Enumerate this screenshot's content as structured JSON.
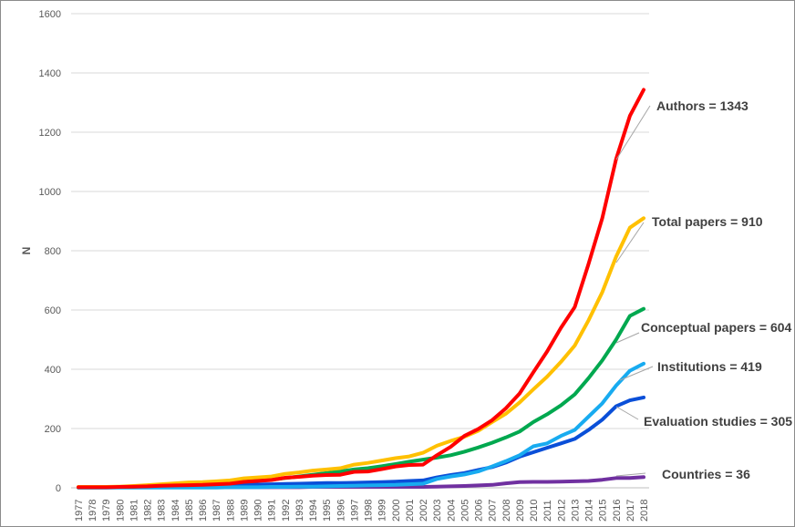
{
  "chart_data": {
    "type": "line",
    "ylabel": "N",
    "xlabel": "",
    "ylim": [
      0,
      1600
    ],
    "yticks": [
      0,
      200,
      400,
      600,
      800,
      1000,
      1200,
      1400,
      1600
    ],
    "grid": true,
    "categories": [
      "1977",
      "1978",
      "1979",
      "1980",
      "1981",
      "1982",
      "1983",
      "1984",
      "1985",
      "1986",
      "1987",
      "1988",
      "1989",
      "1990",
      "1991",
      "1992",
      "1993",
      "1994",
      "1995",
      "1996",
      "1997",
      "1998",
      "1999",
      "2000",
      "2001",
      "2002",
      "2003",
      "2004",
      "2005",
      "2006",
      "2007",
      "2008",
      "2009",
      "2010",
      "2011",
      "2012",
      "2013",
      "2014",
      "2015",
      "2016",
      "2017",
      "2018"
    ],
    "series": [
      {
        "name": "Countries",
        "label": "Countries = 36",
        "color": "#7030A0",
        "values": [
          2,
          2,
          2,
          2,
          2,
          2,
          2,
          2,
          2,
          2,
          2,
          2,
          2,
          2,
          2,
          2,
          2,
          3,
          3,
          3,
          3,
          3,
          3,
          3,
          3,
          3,
          4,
          5,
          6,
          8,
          10,
          15,
          19,
          20,
          20,
          21,
          22,
          23,
          27,
          33,
          33,
          36
        ]
      },
      {
        "name": "Evaluation studies",
        "label": "Evaluation studies = 305",
        "color": "#0A4FD8",
        "values": [
          1,
          1,
          1,
          2,
          2,
          3,
          4,
          5,
          6,
          7,
          8,
          9,
          10,
          11,
          12,
          13,
          14,
          15,
          16,
          16,
          17,
          18,
          19,
          21,
          23,
          25,
          35,
          43,
          50,
          60,
          70,
          85,
          105,
          120,
          135,
          150,
          165,
          195,
          230,
          275,
          295,
          305
        ]
      },
      {
        "name": "Institutions",
        "label": "Institutions = 419",
        "color": "#18ABF0",
        "values": [
          1,
          1,
          1,
          1,
          1,
          1,
          1,
          1,
          1,
          1,
          1,
          2,
          2,
          2,
          3,
          3,
          4,
          4,
          5,
          6,
          7,
          8,
          9,
          10,
          12,
          14,
          30,
          38,
          45,
          55,
          72,
          90,
          110,
          140,
          150,
          175,
          195,
          240,
          285,
          345,
          395,
          419
        ]
      },
      {
        "name": "Conceptual papers",
        "label": "Conceptual papers = 604",
        "color": "#00A84F",
        "values": [
          2,
          2,
          3,
          3,
          4,
          6,
          8,
          10,
          12,
          13,
          15,
          18,
          22,
          25,
          27,
          33,
          38,
          44,
          50,
          55,
          62,
          66,
          73,
          80,
          88,
          95,
          102,
          110,
          122,
          136,
          152,
          170,
          190,
          222,
          248,
          278,
          315,
          370,
          430,
          500,
          580,
          604
        ]
      },
      {
        "name": "Total papers",
        "label": "Total papers = 910",
        "color": "#FFC000",
        "values": [
          3,
          3,
          3,
          4,
          6,
          9,
          12,
          15,
          18,
          19,
          22,
          25,
          32,
          35,
          38,
          47,
          52,
          58,
          62,
          66,
          78,
          84,
          92,
          100,
          106,
          118,
          142,
          158,
          172,
          192,
          222,
          250,
          288,
          332,
          375,
          425,
          480,
          565,
          660,
          780,
          878,
          910
        ]
      },
      {
        "name": "Authors",
        "label": "Authors = 1343",
        "color": "#FF0000",
        "values": [
          2,
          2,
          2,
          3,
          4,
          5,
          7,
          8,
          9,
          10,
          12,
          14,
          20,
          23,
          26,
          34,
          37,
          41,
          43,
          44,
          54,
          55,
          63,
          72,
          77,
          78,
          110,
          138,
          175,
          198,
          228,
          268,
          318,
          390,
          460,
          540,
          610,
          755,
          910,
          1110,
          1255,
          1343
        ]
      }
    ]
  }
}
